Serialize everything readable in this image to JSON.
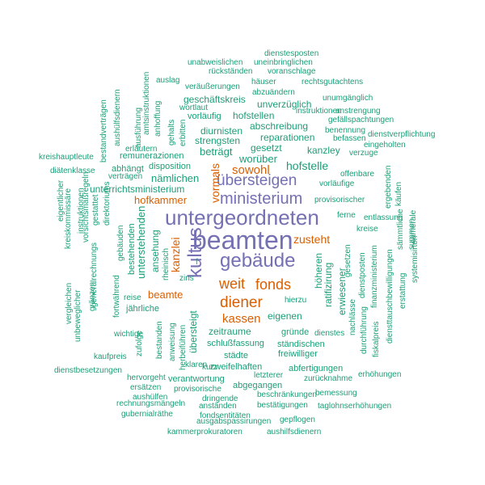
{
  "colors": {
    "small": "#1b9e77",
    "medium": "#d95f02",
    "large": "#7570b3"
  },
  "words": [
    {
      "text": "beamten",
      "c": "large"
    },
    {
      "text": "untergeordneten",
      "c": "large"
    },
    {
      "text": "gebäude",
      "c": "large"
    },
    {
      "text": "kultus",
      "c": "large"
    },
    {
      "text": "ministerium",
      "c": "large"
    },
    {
      "text": "übersteigen",
      "c": "large"
    },
    {
      "text": "diener",
      "c": "medium"
    },
    {
      "text": "fonds",
      "c": "medium"
    },
    {
      "text": "weit",
      "c": "medium"
    },
    {
      "text": "kassen",
      "c": "medium"
    },
    {
      "text": "sowohl",
      "c": "medium"
    },
    {
      "text": "hofkammer",
      "c": "medium"
    },
    {
      "text": "zusteht",
      "c": "medium"
    },
    {
      "text": "kanzlei",
      "c": "medium"
    },
    {
      "text": "beamte",
      "c": "medium"
    },
    {
      "text": "vormals",
      "c": "medium"
    },
    {
      "text": "dienstesposten",
      "c": "small"
    },
    {
      "text": "unabweislichen",
      "c": "small"
    },
    {
      "text": "uneinbringlichen",
      "c": "small"
    },
    {
      "text": "rückständen",
      "c": "small"
    },
    {
      "text": "voranschlage",
      "c": "small"
    },
    {
      "text": "auslag",
      "c": "small"
    },
    {
      "text": "häuser",
      "c": "small"
    },
    {
      "text": "rechtsgutachtens",
      "c": "small"
    },
    {
      "text": "veräußerungen",
      "c": "small"
    },
    {
      "text": "abzuändern",
      "c": "small"
    },
    {
      "text": "unumgänglich",
      "c": "small"
    },
    {
      "text": "geschäftskreis",
      "c": "small"
    },
    {
      "text": "unverzüglich",
      "c": "small"
    },
    {
      "text": "wortlaut",
      "c": "small"
    },
    {
      "text": "instruktionen",
      "c": "small"
    },
    {
      "text": "anstrengung",
      "c": "small"
    },
    {
      "text": "vorläufig",
      "c": "small"
    },
    {
      "text": "hofstellen",
      "c": "small"
    },
    {
      "text": "gefällspachtungen",
      "c": "small"
    },
    {
      "text": "abschreibung",
      "c": "small"
    },
    {
      "text": "benennung",
      "c": "small"
    },
    {
      "text": "dienstverpflichtung",
      "c": "small"
    },
    {
      "text": "diurnisten",
      "c": "small"
    },
    {
      "text": "reparationen",
      "c": "small"
    },
    {
      "text": "befassen",
      "c": "small"
    },
    {
      "text": "eingeholten",
      "c": "small"
    },
    {
      "text": "strengsten",
      "c": "small"
    },
    {
      "text": "remunerazionen",
      "c": "small"
    },
    {
      "text": "gesetzt",
      "c": "small"
    },
    {
      "text": "kanzley",
      "c": "small"
    },
    {
      "text": "verzuge",
      "c": "small"
    },
    {
      "text": "beträgt",
      "c": "small"
    },
    {
      "text": "kreishauptleute",
      "c": "small"
    },
    {
      "text": "erläutern",
      "c": "small"
    },
    {
      "text": "worüber",
      "c": "small"
    },
    {
      "text": "disposition",
      "c": "small"
    },
    {
      "text": "hofstelle",
      "c": "small"
    },
    {
      "text": "diätenklasse",
      "c": "small"
    },
    {
      "text": "abhängt",
      "c": "small"
    },
    {
      "text": "offenbare",
      "c": "small"
    },
    {
      "text": "verträgen",
      "c": "small"
    },
    {
      "text": "nämlichen",
      "c": "small"
    },
    {
      "text": "vorläufige",
      "c": "small"
    },
    {
      "text": "unterrichtsministerium",
      "c": "small"
    },
    {
      "text": "provisorischer",
      "c": "small"
    },
    {
      "text": "ferne",
      "c": "small"
    },
    {
      "text": "entlassung",
      "c": "small"
    },
    {
      "text": "kreise",
      "c": "small"
    },
    {
      "text": "reise",
      "c": "small"
    },
    {
      "text": "jährliche",
      "c": "small"
    },
    {
      "text": "hierzu",
      "c": "small"
    },
    {
      "text": "eigenen",
      "c": "small"
    },
    {
      "text": "zeitraume",
      "c": "small"
    },
    {
      "text": "gründe",
      "c": "small"
    },
    {
      "text": "dienstes",
      "c": "small"
    },
    {
      "text": "wichtige",
      "c": "small"
    },
    {
      "text": "schlußfassung",
      "c": "small"
    },
    {
      "text": "ständischen",
      "c": "small"
    },
    {
      "text": "kaufpreis",
      "c": "small"
    },
    {
      "text": "städte",
      "c": "small"
    },
    {
      "text": "freiwilliger",
      "c": "small"
    },
    {
      "text": "kurz",
      "c": "small"
    },
    {
      "text": "zweifelhaften",
      "c": "small"
    },
    {
      "text": "klaren",
      "c": "small"
    },
    {
      "text": "dienstbesetzungen",
      "c": "small"
    },
    {
      "text": "abfertigungen",
      "c": "small"
    },
    {
      "text": "erhöhungen",
      "c": "small"
    },
    {
      "text": "hervorgeht",
      "c": "small"
    },
    {
      "text": "verantwortung",
      "c": "small"
    },
    {
      "text": "letzterer",
      "c": "small"
    },
    {
      "text": "zurücknahme",
      "c": "small"
    },
    {
      "text": "abgegangen",
      "c": "small"
    },
    {
      "text": "ersätzen",
      "c": "small"
    },
    {
      "text": "provisorische",
      "c": "small"
    },
    {
      "text": "bemessung",
      "c": "small"
    },
    {
      "text": "aushülfen",
      "c": "small"
    },
    {
      "text": "beschränkungen",
      "c": "small"
    },
    {
      "text": "dringende",
      "c": "small"
    },
    {
      "text": "rechnungsmängeln",
      "c": "small"
    },
    {
      "text": "anständen",
      "c": "small"
    },
    {
      "text": "bestätigungen",
      "c": "small"
    },
    {
      "text": "taglohnserhöhungen",
      "c": "small"
    },
    {
      "text": "gubernialräthe",
      "c": "small"
    },
    {
      "text": "fondsentitäten",
      "c": "small"
    },
    {
      "text": "gepflogen",
      "c": "small"
    },
    {
      "text": "ausgabspassirungen",
      "c": "small"
    },
    {
      "text": "kammerprokuratoren",
      "c": "small"
    },
    {
      "text": "aushilfsdienern",
      "c": "small"
    },
    {
      "text": "f",
      "c": "small"
    },
    {
      "text": "zins",
      "c": "small"
    },
    {
      "text": "aushülfsdienern",
      "c": "small",
      "v": true
    },
    {
      "text": "bestandverträgen",
      "c": "small",
      "v": true
    },
    {
      "text": "amtsinstruktionen",
      "c": "small",
      "v": true
    },
    {
      "text": "ausführung",
      "c": "small",
      "v": true
    },
    {
      "text": "anhoffung",
      "c": "small",
      "v": true
    },
    {
      "text": "gehalts",
      "c": "small",
      "v": true
    },
    {
      "text": "erbitten",
      "c": "small",
      "v": true
    },
    {
      "text": "eigentlicher",
      "c": "small",
      "v": true
    },
    {
      "text": "kreiskommissäre",
      "c": "small",
      "v": true
    },
    {
      "text": "instruktionen",
      "c": "small",
      "v": true
    },
    {
      "text": "vorsichtsmaßregeln",
      "c": "small",
      "v": true
    },
    {
      "text": "gestattet",
      "c": "small",
      "v": true
    },
    {
      "text": "direktoriums",
      "c": "small",
      "v": true
    },
    {
      "text": "generalrechnungs",
      "c": "small",
      "v": true
    },
    {
      "text": "gebäuden",
      "c": "small",
      "v": true
    },
    {
      "text": "bestehenden",
      "c": "small",
      "v": true
    },
    {
      "text": "unterstehenden",
      "c": "small",
      "v": true
    },
    {
      "text": "ansehung",
      "c": "small",
      "v": true
    },
    {
      "text": "rheinisch",
      "c": "small",
      "v": true
    },
    {
      "text": "fortwährend",
      "c": "small",
      "v": true
    },
    {
      "text": "vergleichen",
      "c": "small",
      "v": true
    },
    {
      "text": "unbeweglicher",
      "c": "small",
      "v": true
    },
    {
      "text": "gränzen",
      "c": "small",
      "v": true
    },
    {
      "text": "zufolge",
      "c": "small",
      "v": true
    },
    {
      "text": "bestanden",
      "c": "small",
      "v": true
    },
    {
      "text": "anweisung",
      "c": "small",
      "v": true
    },
    {
      "text": "herbeiführen",
      "c": "small",
      "v": true
    },
    {
      "text": "übersteigt",
      "c": "small",
      "v": true
    },
    {
      "text": "höheren",
      "c": "small",
      "v": true
    },
    {
      "text": "ratifizirung",
      "c": "small",
      "v": true
    },
    {
      "text": "erwiesener",
      "c": "small",
      "v": true
    },
    {
      "text": "nachlässe",
      "c": "small",
      "v": true
    },
    {
      "text": "gesetzen",
      "c": "small",
      "v": true
    },
    {
      "text": "dienstposten",
      "c": "small",
      "v": true
    },
    {
      "text": "finanzministerium",
      "c": "small",
      "v": true
    },
    {
      "text": "durchführung",
      "c": "small",
      "v": true
    },
    {
      "text": "fiskalpreis",
      "c": "small",
      "v": true
    },
    {
      "text": "diensttauschbewilligungen",
      "c": "small",
      "v": true
    },
    {
      "text": "ergebenden",
      "c": "small",
      "v": true
    },
    {
      "text": "käufen",
      "c": "small",
      "v": true
    },
    {
      "text": "sämmtliche",
      "c": "small",
      "v": true
    },
    {
      "text": "summen",
      "c": "small",
      "v": true
    },
    {
      "text": "camerale",
      "c": "small",
      "v": true
    },
    {
      "text": "erstattung",
      "c": "small",
      "v": true
    },
    {
      "text": "systemisirten",
      "c": "small",
      "v": true
    }
  ]
}
